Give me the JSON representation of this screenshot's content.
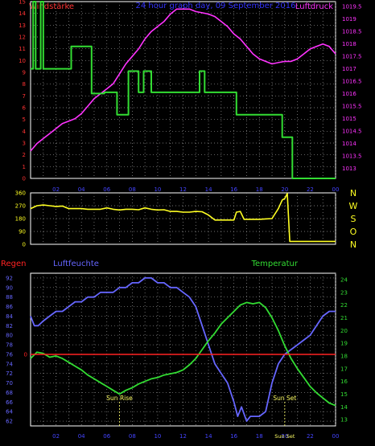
{
  "colors": {
    "background": "#000000",
    "frame": "#ffffff",
    "grid": "#9a9a9a",
    "wind": "#ff3333",
    "pressure": "#ff33ff",
    "title": "#3333ff",
    "wind_line": "#33dd33",
    "direction_line": "#ffff22",
    "humidity": "#6666ff",
    "temperature": "#33dd33",
    "rain": "#ff2222",
    "compass": "#ffff22",
    "axis_text_right_bottom": "#33dd33",
    "sun_text": "#ffff66",
    "hour_labels": "#4444ff"
  },
  "header": {
    "left_label": "Windstärke",
    "title": "24 hour graph day, 09 September 2016",
    "right_label": "Luftdruck"
  },
  "x_ticks": [
    "02",
    "04",
    "06",
    "08",
    "10",
    "12",
    "14",
    "16",
    "18",
    "20",
    "22",
    "00"
  ],
  "compass_letters": [
    "N",
    "W",
    "S",
    "O",
    "N"
  ],
  "bottom_labels": {
    "rain": "Regen",
    "humidity": "Luftfeuchte",
    "temperature": "Temperatur",
    "sun_rise": "Sun Rise",
    "sun_set": "Sun Set",
    "sun_set_bottom": "Sun Set"
  },
  "chart_data": [
    {
      "type": "line",
      "name": "wind_pressure_panel",
      "title": "24 hour graph day, 09 September 2016",
      "x_unit": "hour",
      "xlim": [
        0,
        24
      ],
      "left_axis": {
        "label": "Windstärke",
        "ylim": [
          0,
          15
        ],
        "ticks": [
          0,
          1,
          2,
          3,
          4,
          5,
          6,
          7,
          8,
          9,
          10,
          11,
          12,
          13,
          14,
          15
        ]
      },
      "right_axis": {
        "label": "Luftdruck",
        "ylim": [
          1012.6,
          1019.7
        ],
        "ticks": [
          "1013",
          "1013.5",
          "1014",
          "1014.5",
          "1015",
          "1015.5",
          "1016",
          "1016.5",
          "1017",
          "1017.5",
          "1018",
          "1018.5",
          "1019",
          "1019.5"
        ]
      },
      "series": [
        {
          "axis": "left",
          "x": [
            0,
            0.2,
            0.2,
            0.4,
            0.4,
            0.8,
            0.8,
            1,
            1,
            1.6,
            1.6,
            3.2,
            3.2,
            4.8,
            4.8,
            5.8,
            5.8,
            6.8,
            6.8,
            7.7,
            7.7,
            8.5,
            8.5,
            8.9,
            8.9,
            9.5,
            9.5,
            10,
            10,
            13.3,
            13.3,
            13.7,
            13.7,
            16.2,
            16.2,
            16.5,
            16.5,
            19.8,
            19.8,
            20.2,
            20.2,
            20.6,
            20.6,
            24
          ],
          "values": [
            9.3,
            9.3,
            15,
            15,
            9.3,
            9.3,
            15,
            15,
            9.3,
            9.3,
            9.3,
            9.3,
            11.2,
            11.2,
            7.2,
            7.2,
            7.3,
            7.3,
            5.4,
            5.4,
            9.1,
            9.1,
            7.3,
            7.3,
            9.1,
            9.1,
            7.3,
            7.3,
            7.3,
            7.3,
            9.1,
            9.1,
            7.3,
            7.3,
            5.4,
            5.4,
            5.4,
            5.4,
            3.5,
            3.5,
            3.5,
            3.5,
            0,
            0
          ]
        },
        {
          "axis": "right",
          "x": [
            0,
            0.5,
            1,
            1.5,
            2,
            2.5,
            3,
            3.5,
            4,
            4.5,
            5,
            5.5,
            6,
            6.5,
            7,
            7.5,
            8,
            8.5,
            9,
            9.5,
            10,
            10.5,
            11,
            11.5,
            12,
            12.5,
            13,
            13.5,
            14,
            14.5,
            15,
            15.5,
            16,
            16.5,
            17,
            17.5,
            18,
            18.5,
            19,
            19.5,
            20,
            20.5,
            21,
            21.5,
            22,
            22.5,
            23,
            23.5,
            24
          ],
          "values": [
            1013.7,
            1014.0,
            1014.2,
            1014.4,
            1014.6,
            1014.8,
            1014.9,
            1015.0,
            1015.2,
            1015.5,
            1015.8,
            1016.0,
            1016.2,
            1016.4,
            1016.8,
            1017.2,
            1017.5,
            1017.8,
            1018.2,
            1018.5,
            1018.7,
            1018.9,
            1019.2,
            1019.4,
            1019.4,
            1019.4,
            1019.3,
            1019.25,
            1019.2,
            1019.1,
            1018.9,
            1018.7,
            1018.4,
            1018.2,
            1017.9,
            1017.6,
            1017.4,
            1017.3,
            1017.2,
            1017.25,
            1017.3,
            1017.3,
            1017.4,
            1017.6,
            1017.8,
            1017.9,
            1018.0,
            1017.9,
            1017.6
          ]
        }
      ]
    },
    {
      "type": "line",
      "name": "wind_direction_panel",
      "x_unit": "hour",
      "xlim": [
        0,
        24
      ],
      "left_axis": {
        "ylim": [
          0,
          360
        ],
        "ticks": [
          0,
          90,
          180,
          270,
          360
        ]
      },
      "right_axis": {
        "ticks": [
          "N",
          "W",
          "S",
          "O",
          "N"
        ]
      },
      "series": [
        {
          "x": [
            0,
            0.5,
            1,
            1.5,
            2,
            2.5,
            3,
            3.5,
            4,
            4.5,
            5,
            5.5,
            6,
            6.5,
            7,
            7.5,
            8,
            8.5,
            9,
            9.5,
            10,
            10.5,
            11,
            11.5,
            12,
            12.5,
            13,
            13.5,
            14,
            14.5,
            15,
            15.5,
            16,
            16.2,
            16.5,
            16.8,
            17,
            17.5,
            18,
            18.5,
            19,
            19.5,
            19.8,
            20,
            20.2,
            20.4,
            21,
            22,
            23,
            24
          ],
          "values": [
            250,
            270,
            275,
            270,
            265,
            268,
            250,
            250,
            250,
            245,
            245,
            245,
            255,
            245,
            240,
            245,
            245,
            242,
            255,
            245,
            240,
            242,
            230,
            230,
            225,
            225,
            230,
            228,
            205,
            170,
            170,
            170,
            170,
            225,
            230,
            175,
            175,
            175,
            175,
            178,
            180,
            250,
            310,
            320,
            355,
            20,
            20,
            20,
            20,
            20
          ]
        }
      ]
    },
    {
      "type": "line",
      "name": "humidity_temperature_panel",
      "x_unit": "hour",
      "xlim": [
        0,
        24
      ],
      "left_axis": {
        "label": "Luftfeuchte",
        "ylim": [
          61,
          93
        ],
        "ticks": [
          62,
          64,
          66,
          68,
          70,
          72,
          74,
          76,
          78,
          80,
          82,
          84,
          86,
          88,
          90,
          92
        ]
      },
      "right_axis": {
        "label": "Temperatur",
        "ylim": [
          12.5,
          24.5
        ],
        "ticks": [
          13,
          14,
          15,
          16,
          17,
          18,
          19,
          20,
          21,
          22,
          23,
          24
        ]
      },
      "rain_axis": {
        "label": "Regen",
        "ticks": [
          0
        ]
      },
      "series": [
        {
          "name": "Luftfeuchte",
          "axis": "left",
          "x": [
            0,
            0.3,
            0.6,
            1,
            1.5,
            2,
            2.5,
            3,
            3.5,
            4,
            4.5,
            5,
            5.5,
            6,
            6.5,
            7,
            7.5,
            8,
            8.5,
            9,
            9.5,
            10,
            10.5,
            11,
            11.5,
            12,
            12.5,
            13,
            13.5,
            14,
            14.5,
            15,
            15.5,
            16,
            16.3,
            16.6,
            17,
            17.3,
            17.6,
            18,
            18.5,
            19,
            19.5,
            20,
            20.5,
            21,
            21.5,
            22,
            22.5,
            23,
            23.5,
            24
          ],
          "values": [
            84,
            82,
            82,
            83,
            84,
            85,
            85,
            86,
            87,
            87,
            88,
            88,
            89,
            89,
            89,
            90,
            90,
            91,
            91,
            92,
            92,
            91,
            91,
            90,
            90,
            89,
            88,
            86,
            82,
            78,
            74,
            72,
            70,
            66,
            63,
            65,
            62,
            63,
            63,
            63,
            64,
            70,
            74,
            76,
            77,
            78,
            79,
            80,
            82,
            84,
            85,
            85
          ]
        },
        {
          "name": "Temperatur",
          "axis": "right",
          "x": [
            0,
            0.5,
            1,
            1.5,
            2,
            2.5,
            3,
            3.5,
            4,
            4.5,
            5,
            5.5,
            6,
            6.5,
            7,
            7.5,
            8,
            8.5,
            9,
            9.5,
            10,
            10.5,
            11,
            11.5,
            12,
            12.5,
            13,
            13.5,
            14,
            14.5,
            15,
            15.5,
            16,
            16.5,
            17,
            17.5,
            18,
            18.5,
            19,
            19.5,
            20,
            20.5,
            21,
            21.5,
            22,
            22.5,
            23,
            23.5,
            24
          ],
          "values": [
            17.8,
            18.3,
            18.2,
            17.9,
            18.0,
            17.8,
            17.5,
            17.2,
            16.9,
            16.5,
            16.2,
            15.9,
            15.6,
            15.3,
            15.0,
            15.3,
            15.5,
            15.8,
            16.0,
            16.2,
            16.3,
            16.5,
            16.6,
            16.7,
            16.9,
            17.3,
            17.8,
            18.5,
            19.2,
            19.8,
            20.5,
            21.0,
            21.5,
            22.0,
            22.2,
            22.1,
            22.2,
            21.8,
            21.0,
            20.0,
            18.8,
            17.8,
            17.0,
            16.3,
            15.6,
            15.1,
            14.7,
            14.3,
            14.1
          ]
        },
        {
          "name": "Regen",
          "axis": "rain",
          "x": [
            0,
            24
          ],
          "values": [
            0,
            0
          ]
        }
      ],
      "annotations": [
        {
          "label": "Sun Rise",
          "x": 7
        },
        {
          "label": "Sun Set",
          "x": 20
        }
      ]
    }
  ]
}
